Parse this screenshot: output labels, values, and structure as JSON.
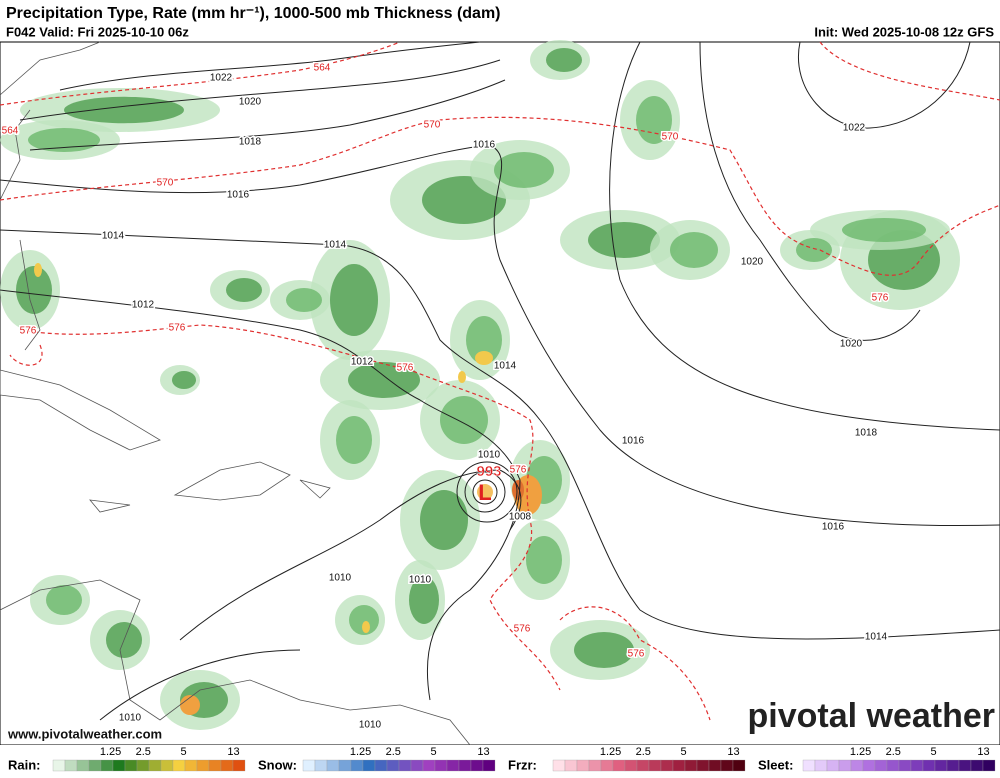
{
  "header": {
    "title": "Precipitation Type, Rate (mm hr⁻¹), 1000-500 mb Thickness (dam)",
    "valid": "F042 Valid: Fri 2025-10-10 06z",
    "init": "Init: Wed 2025-10-08 12z GFS"
  },
  "isobar_labels": [
    "1022",
    "1020",
    "1018",
    "1016",
    "1014",
    "1014",
    "1012",
    "1012",
    "1016",
    "1014",
    "1010",
    "1008",
    "1010",
    "1010",
    "1016",
    "1018",
    "1016",
    "1014",
    "1020",
    "1020",
    "1022",
    "1010",
    "1010"
  ],
  "thickness_labels": [
    "564",
    "564",
    "570",
    "570",
    "570",
    "576",
    "576",
    "576",
    "576",
    "576",
    "576",
    "576"
  ],
  "low": {
    "symbol": "L",
    "pressure": "993"
  },
  "footer": {
    "url": "www.pivotalweather.com",
    "brand": "pivotal weather"
  },
  "legend": [
    {
      "name": "Rain:",
      "ticks": [
        "1.25",
        "2.5",
        "5",
        "13"
      ]
    },
    {
      "name": "Snow:",
      "ticks": [
        "1.25",
        "2.5",
        "5",
        "13"
      ]
    },
    {
      "name": "Frzr:",
      "ticks": [
        "1.25",
        "2.5",
        "5",
        "13"
      ]
    },
    {
      "name": "Sleet:",
      "ticks": [
        "1.25",
        "2.5",
        "5",
        "13"
      ]
    }
  ]
}
